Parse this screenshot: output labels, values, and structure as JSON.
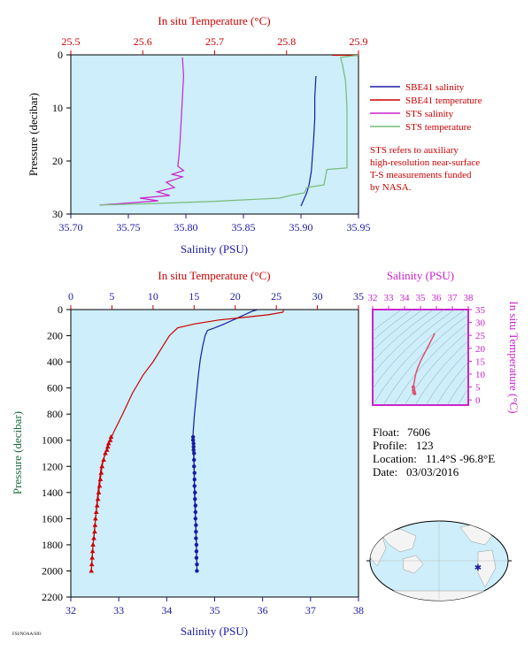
{
  "chart_data": [
    {
      "type": "line",
      "name": "near-surface profile",
      "top_axis": {
        "label": "In situ Temperature (°C)",
        "range": [
          25.5,
          25.9
        ],
        "ticks": [
          "25.5",
          "25.6",
          "25.7",
          "25.8",
          "25.9"
        ]
      },
      "bottom_axis": {
        "label": "Salinity (PSU)",
        "range": [
          35.7,
          35.95
        ],
        "ticks": [
          "35.70",
          "35.75",
          "35.80",
          "35.85",
          "35.90",
          "35.95"
        ]
      },
      "y_axis": {
        "label": "Pressure (decibar)",
        "range": [
          0,
          30
        ],
        "inverted": true,
        "ticks": [
          "0",
          "10",
          "20",
          "30"
        ]
      },
      "legend": {
        "placement": "right",
        "entries": [
          {
            "label": "SBE41 salinity",
            "color": "#1a1aa6"
          },
          {
            "label": "SBE41 temperature",
            "color": "#cc0000"
          },
          {
            "label": "STS salinity",
            "color": "#cc22cc"
          },
          {
            "label": "STS temperature",
            "color": "#77bb77"
          }
        ]
      },
      "note": [
        "STS refers to auxiliary",
        "high-resolution near-surface",
        "T-S measurements funded",
        "by NASA."
      ],
      "series": [
        {
          "name": "SBE41 salinity",
          "axis": "salinity",
          "color": "#1a1aa6",
          "points": [
            [
              35.913,
              4.0
            ],
            [
              35.912,
              8.0
            ],
            [
              35.912,
              12.0
            ],
            [
              35.911,
              16.0
            ],
            [
              35.91,
              19.0
            ],
            [
              35.909,
              22.0
            ],
            [
              35.907,
              24.5
            ],
            [
              35.905,
              26.0
            ],
            [
              35.902,
              27.5
            ],
            [
              35.9,
              28.5
            ]
          ]
        },
        {
          "name": "SBE41 temperature",
          "axis": "temperature",
          "color": "#cc0000",
          "points": [
            [
              25.863,
              0.0
            ],
            [
              25.9,
              0.05
            ]
          ]
        },
        {
          "name": "STS salinity",
          "axis": "salinity",
          "color": "#cc22cc",
          "points": [
            [
              35.797,
              0.5
            ],
            [
              35.798,
              4.0
            ],
            [
              35.797,
              8.0
            ],
            [
              35.796,
              12.0
            ],
            [
              35.795,
              16.0
            ],
            [
              35.794,
              19.0
            ],
            [
              35.793,
              21.0
            ],
            [
              35.798,
              21.8
            ],
            [
              35.788,
              22.5
            ],
            [
              35.797,
              23.0
            ],
            [
              35.783,
              24.0
            ],
            [
              35.79,
              25.0
            ],
            [
              35.775,
              25.8
            ],
            [
              35.786,
              26.5
            ],
            [
              35.76,
              27.0
            ],
            [
              35.776,
              27.5
            ],
            [
              35.745,
              28.0
            ],
            [
              35.725,
              28.3
            ]
          ]
        },
        {
          "name": "STS temperature",
          "axis": "temperature",
          "color": "#77bb77",
          "points": [
            [
              25.9,
              0.05
            ],
            [
              25.875,
              0.5
            ],
            [
              25.878,
              2.0
            ],
            [
              25.882,
              5.0
            ],
            [
              25.884,
              10.0
            ],
            [
              25.884,
              15.0
            ],
            [
              25.884,
              20.0
            ],
            [
              25.884,
              21.3
            ],
            [
              25.856,
              21.6
            ],
            [
              25.852,
              24.5
            ],
            [
              25.828,
              25.0
            ],
            [
              25.825,
              26.0
            ],
            [
              25.805,
              26.5
            ],
            [
              25.79,
              27.0
            ],
            [
              25.76,
              27.2
            ],
            [
              25.7,
              27.6
            ],
            [
              25.62,
              28.0
            ],
            [
              25.54,
              28.3
            ]
          ]
        }
      ]
    },
    {
      "type": "line",
      "name": "full profile",
      "top_axis": {
        "label": "In situ Temperature (°C)",
        "range": [
          0,
          35
        ],
        "ticks": [
          "0",
          "5",
          "10",
          "15",
          "20",
          "25",
          "30",
          "35"
        ]
      },
      "bottom_axis": {
        "label": "Salinity (PSU)",
        "range": [
          32,
          38
        ],
        "ticks": [
          "32",
          "33",
          "34",
          "35",
          "36",
          "37",
          "38"
        ]
      },
      "y_axis": {
        "label": "Pressure (decibar)",
        "range": [
          0,
          2200
        ],
        "inverted": true,
        "ticks": [
          "0",
          "200",
          "400",
          "600",
          "800",
          "1000",
          "1200",
          "1400",
          "1600",
          "1800",
          "2000",
          "2200"
        ]
      },
      "series": [
        {
          "name": "salinity",
          "axis": "salinity",
          "color": "#1a1aa6",
          "points": [
            [
              35.9,
              0
            ],
            [
              35.8,
              10
            ],
            [
              35.5,
              60
            ],
            [
              35.2,
              110
            ],
            [
              35.0,
              140
            ],
            [
              34.85,
              160
            ],
            [
              34.8,
              200
            ],
            [
              34.75,
              280
            ],
            [
              34.7,
              380
            ],
            [
              34.66,
              500
            ],
            [
              34.62,
              650
            ],
            [
              34.58,
              800
            ],
            [
              34.55,
              950
            ],
            [
              34.55,
              1000
            ],
            [
              34.56,
              1100
            ],
            [
              34.57,
              1200
            ],
            [
              34.58,
              1400
            ],
            [
              34.6,
              1600
            ],
            [
              34.62,
              1800
            ],
            [
              34.63,
              2000
            ]
          ]
        },
        {
          "name": "temperature",
          "axis": "temperature",
          "color": "#cc0000",
          "points": [
            [
              25.9,
              0
            ],
            [
              25.8,
              20
            ],
            [
              24.0,
              40
            ],
            [
              21.0,
              60
            ],
            [
              18.0,
              80
            ],
            [
              15.0,
              110
            ],
            [
              13.0,
              140
            ],
            [
              12.0,
              200
            ],
            [
              11.0,
              300
            ],
            [
              10.0,
              400
            ],
            [
              8.8,
              500
            ],
            [
              7.5,
              640
            ],
            [
              6.3,
              800
            ],
            [
              5.2,
              940
            ],
            [
              4.8,
              1000
            ],
            [
              4.2,
              1100
            ],
            [
              3.7,
              1200
            ],
            [
              3.3,
              1400
            ],
            [
              3.0,
              1600
            ],
            [
              2.7,
              1800
            ],
            [
              2.5,
              2000
            ]
          ]
        },
        {
          "name": "salinity markers",
          "axis": "salinity",
          "color": "#1a1aa6",
          "marker": "circle",
          "points": [
            [
              34.55,
              975
            ],
            [
              34.55,
              1000
            ],
            [
              34.56,
              1025
            ],
            [
              34.56,
              1050
            ],
            [
              34.56,
              1075
            ],
            [
              34.57,
              1100
            ],
            [
              34.57,
              1150
            ],
            [
              34.57,
              1200
            ],
            [
              34.58,
              1250
            ],
            [
              34.58,
              1300
            ],
            [
              34.58,
              1350
            ],
            [
              34.59,
              1400
            ],
            [
              34.59,
              1450
            ],
            [
              34.6,
              1500
            ],
            [
              34.6,
              1550
            ],
            [
              34.6,
              1600
            ],
            [
              34.61,
              1650
            ],
            [
              34.61,
              1700
            ],
            [
              34.61,
              1750
            ],
            [
              34.62,
              1800
            ],
            [
              34.62,
              1850
            ],
            [
              34.62,
              1900
            ],
            [
              34.63,
              1950
            ],
            [
              34.63,
              2000
            ]
          ]
        },
        {
          "name": "temperature markers",
          "axis": "temperature",
          "color": "#cc0000",
          "marker": "triangle",
          "points": [
            [
              4.9,
              975
            ],
            [
              4.8,
              1000
            ],
            [
              4.6,
              1025
            ],
            [
              4.5,
              1050
            ],
            [
              4.4,
              1075
            ],
            [
              4.2,
              1100
            ],
            [
              4.0,
              1150
            ],
            [
              3.8,
              1200
            ],
            [
              3.7,
              1250
            ],
            [
              3.6,
              1300
            ],
            [
              3.5,
              1350
            ],
            [
              3.4,
              1400
            ],
            [
              3.3,
              1450
            ],
            [
              3.2,
              1500
            ],
            [
              3.1,
              1550
            ],
            [
              3.0,
              1600
            ],
            [
              2.95,
              1650
            ],
            [
              2.9,
              1700
            ],
            [
              2.8,
              1750
            ],
            [
              2.7,
              1800
            ],
            [
              2.65,
              1850
            ],
            [
              2.6,
              1900
            ],
            [
              2.55,
              1950
            ],
            [
              2.5,
              2000
            ]
          ]
        }
      ]
    },
    {
      "type": "scatter",
      "name": "T-S diagram",
      "top_axis": {
        "label": "Salinity (PSU)",
        "range": [
          32,
          38
        ],
        "ticks": [
          "32",
          "33",
          "34",
          "35",
          "36",
          "37",
          "38"
        ]
      },
      "right_axis": {
        "label": "In situ Temperature (°C)",
        "range": [
          -2,
          35
        ],
        "ticks": [
          "0",
          "5",
          "10",
          "15",
          "20",
          "25",
          "30",
          "35"
        ]
      },
      "series": [
        {
          "name": "profile T-S",
          "color": "#e05070",
          "points": [
            [
              35.9,
              25.8
            ],
            [
              35.5,
              21.0
            ],
            [
              35.0,
              15.0
            ],
            [
              34.8,
              12.0
            ],
            [
              34.7,
              10.0
            ],
            [
              34.62,
              7.5
            ],
            [
              34.55,
              5.0
            ],
            [
              34.57,
              3.8
            ],
            [
              34.6,
              3.0
            ],
            [
              34.63,
              2.5
            ]
          ]
        }
      ]
    }
  ],
  "float_info": {
    "float_label": "Float:",
    "float_value": "7606",
    "profile_label": "Profile:",
    "profile_value": "123",
    "location_label": "Location:",
    "location_value": "11.4°S  -96.8°E",
    "date_label": "Date:",
    "date_value": "03/03/2016"
  },
  "map": {
    "marker_color": "#1a1aa6",
    "marker_lon": -96.8,
    "marker_lat": -11.4
  },
  "footer_text": "FSI/NOAA/SIO"
}
